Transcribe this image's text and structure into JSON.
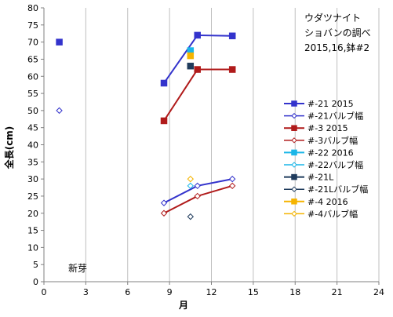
{
  "chart_data": {
    "type": "scatter",
    "title_lines": [
      "ウダツナイト",
      "ショバンの調べ",
      "2015,16,鉢#2"
    ],
    "xlabel": "月",
    "ylabel": "全長(cm)",
    "xlim": [
      0,
      24
    ],
    "ylim": [
      0,
      80
    ],
    "x_ticks": [
      0,
      3,
      6,
      9,
      12,
      15,
      18,
      21,
      24
    ],
    "y_ticks": [
      0,
      5,
      10,
      15,
      20,
      25,
      30,
      35,
      40,
      45,
      50,
      55,
      60,
      65,
      70,
      75,
      80
    ],
    "grid": "vertical",
    "legend_position": "right",
    "annotation": "新芽",
    "series": [
      {
        "name": "#-21 2015",
        "color": "#3333cc",
        "marker": "square",
        "line": true,
        "points": [
          [
            1.1,
            70
          ],
          [
            8.6,
            58
          ],
          [
            11,
            72
          ],
          [
            13.5,
            71.8
          ]
        ],
        "segment_start": 1
      },
      {
        "name": "#-21バルブ幅",
        "color": "#3333cc",
        "marker": "diamond-open",
        "line": true,
        "points": [
          [
            1.1,
            50
          ],
          [
            8.6,
            23
          ],
          [
            11,
            28
          ],
          [
            13.5,
            30
          ]
        ],
        "segment_start": 1
      },
      {
        "name": "#-3 2015",
        "color": "#b01a1a",
        "marker": "square",
        "line": true,
        "points": [
          [
            8.6,
            47
          ],
          [
            11,
            62
          ],
          [
            13.5,
            62
          ]
        ],
        "segment_start": 0
      },
      {
        "name": "#-3バルブ幅",
        "color": "#b01a1a",
        "marker": "diamond-open",
        "line": true,
        "points": [
          [
            8.6,
            20
          ],
          [
            11,
            25
          ],
          [
            13.5,
            28
          ]
        ],
        "segment_start": 0
      },
      {
        "name": "#-22 2016",
        "color": "#1ab6e8",
        "marker": "square",
        "line": false,
        "points": [
          [
            10.5,
            67.5
          ]
        ]
      },
      {
        "name": "#-22バルブ幅",
        "color": "#1ab6e8",
        "marker": "diamond-open",
        "line": false,
        "points": [
          [
            10.5,
            28
          ]
        ]
      },
      {
        "name": "#-21L",
        "color": "#1f3b5c",
        "marker": "square",
        "line": false,
        "points": [
          [
            10.5,
            63
          ]
        ]
      },
      {
        "name": "#-21Lバルブ幅",
        "color": "#1f3b5c",
        "marker": "diamond-open",
        "line": false,
        "points": [
          [
            10.5,
            19
          ]
        ]
      },
      {
        "name": "#-4 2016",
        "color": "#f5b400",
        "marker": "square",
        "line": false,
        "points": [
          [
            10.5,
            66
          ]
        ]
      },
      {
        "name": "#-4バルブ幅",
        "color": "#f5b400",
        "marker": "diamond-open",
        "line": false,
        "points": [
          [
            10.5,
            30
          ]
        ]
      }
    ]
  }
}
